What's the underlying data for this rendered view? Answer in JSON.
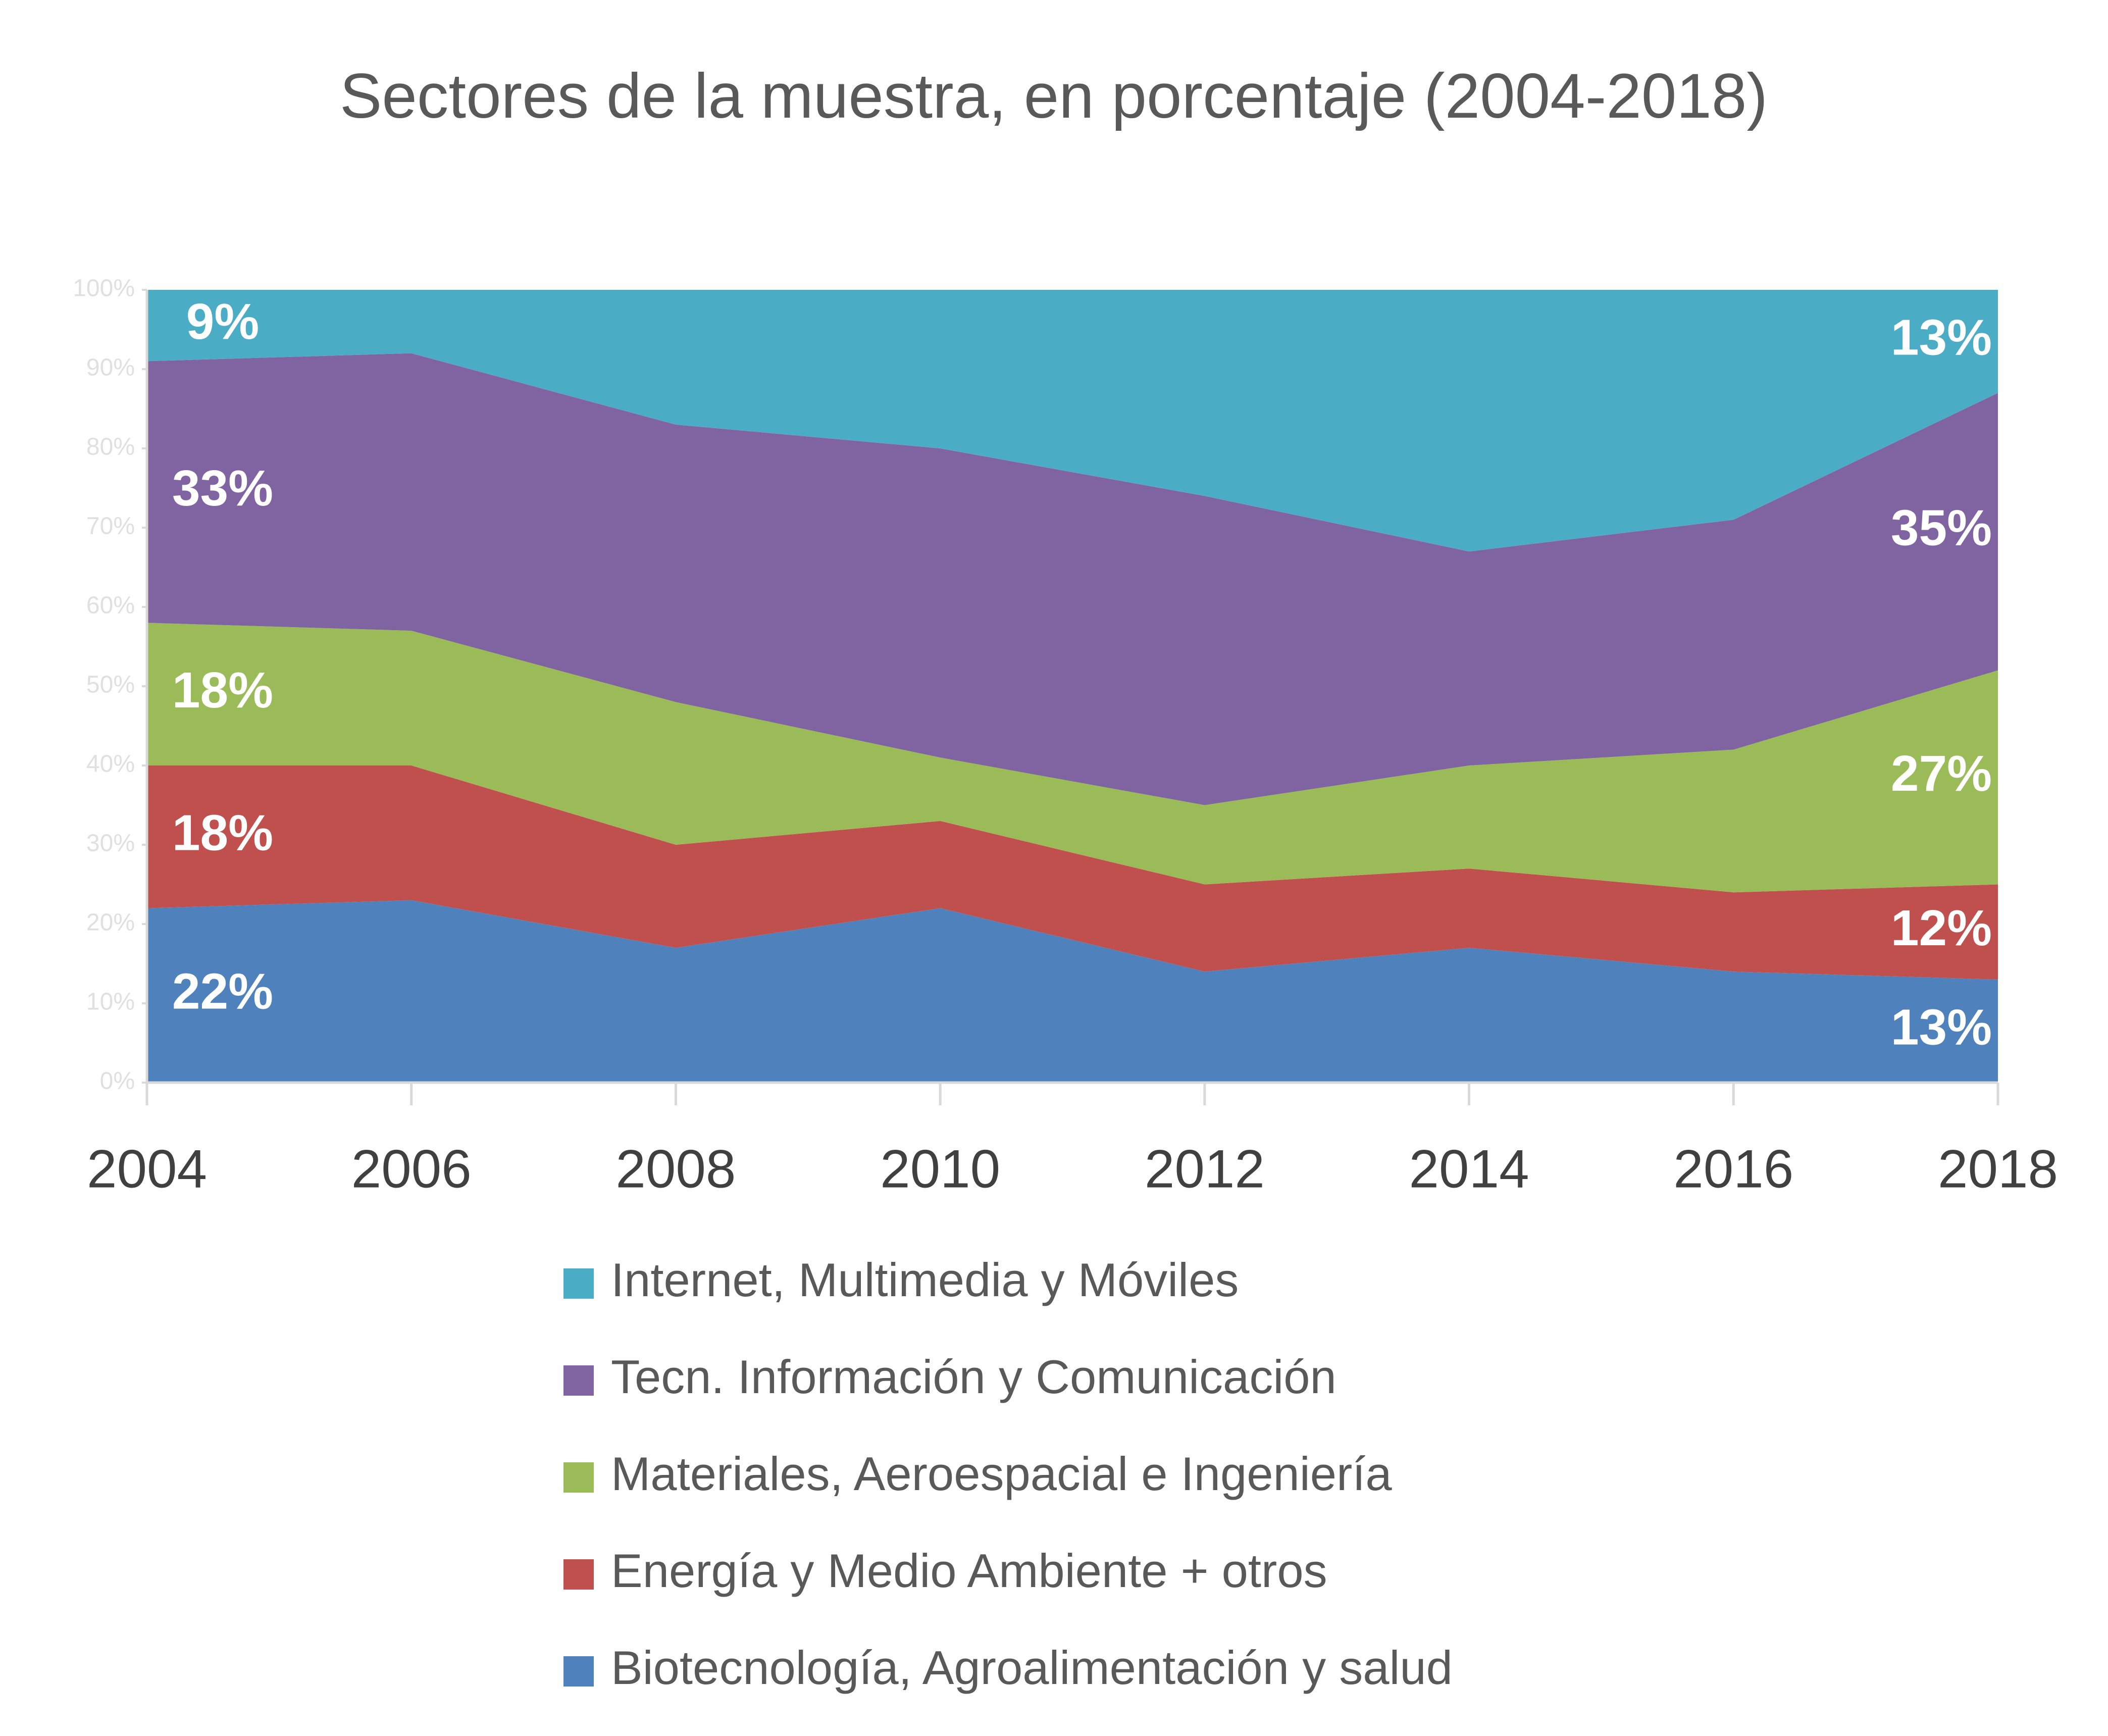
{
  "chart_data": {
    "type": "stacked_area",
    "title": "Sectores de la muestra, en porcentaje (2004-2018)",
    "x": [
      2004,
      2006,
      2008,
      2010,
      2012,
      2014,
      2016,
      2018
    ],
    "xlim": [
      2004,
      2018
    ],
    "xticks": [
      2004,
      2006,
      2008,
      2010,
      2012,
      2014,
      2016,
      2018
    ],
    "ylim": [
      0,
      100
    ],
    "yticks": [
      {
        "value": 0,
        "label": "0%"
      },
      {
        "value": 10,
        "label": "10%"
      },
      {
        "value": 20,
        "label": "20%"
      },
      {
        "value": 30,
        "label": "30%"
      },
      {
        "value": 40,
        "label": "40%"
      },
      {
        "value": 50,
        "label": "50%"
      },
      {
        "value": 60,
        "label": "60%"
      },
      {
        "value": 70,
        "label": "70%"
      },
      {
        "value": 80,
        "label": "80%"
      },
      {
        "value": 90,
        "label": "90%"
      },
      {
        "value": 100,
        "label": "100%"
      }
    ],
    "legend": "bottom",
    "series": [
      {
        "name": "Biotecnología, Agroalimentación y salud",
        "color": "#4f81bd",
        "values": [
          22,
          23,
          17,
          22,
          14,
          17,
          14,
          13
        ],
        "value_labels": [
          "22%",
          null,
          null,
          null,
          null,
          null,
          null,
          "13%"
        ]
      },
      {
        "name": "Energía y Medio Ambiente + otros",
        "color": "#c0504d",
        "values": [
          18,
          17,
          13,
          11,
          11,
          10,
          10,
          12
        ],
        "value_labels": [
          "18%",
          null,
          null,
          null,
          null,
          null,
          null,
          "12%"
        ]
      },
      {
        "name": "Materiales, Aeroespacial e Ingeniería",
        "color": "#9bbb59",
        "values": [
          18,
          17,
          18,
          8,
          10,
          13,
          18,
          27
        ],
        "value_labels": [
          "18%",
          null,
          null,
          null,
          null,
          null,
          null,
          "27%"
        ]
      },
      {
        "name": "Tecn. Información y Comunicación",
        "color": "#8064a2",
        "values": [
          33,
          35,
          35,
          39,
          39,
          27,
          29,
          35
        ],
        "value_labels": [
          "33%",
          null,
          null,
          null,
          null,
          null,
          null,
          "35%"
        ]
      },
      {
        "name": "Internet, Multimedia y Móviles",
        "color": "#4bacc6",
        "values": [
          9,
          8,
          17,
          20,
          26,
          33,
          29,
          13
        ],
        "value_labels": [
          "9%",
          null,
          null,
          null,
          null,
          null,
          null,
          "13%"
        ]
      }
    ]
  }
}
